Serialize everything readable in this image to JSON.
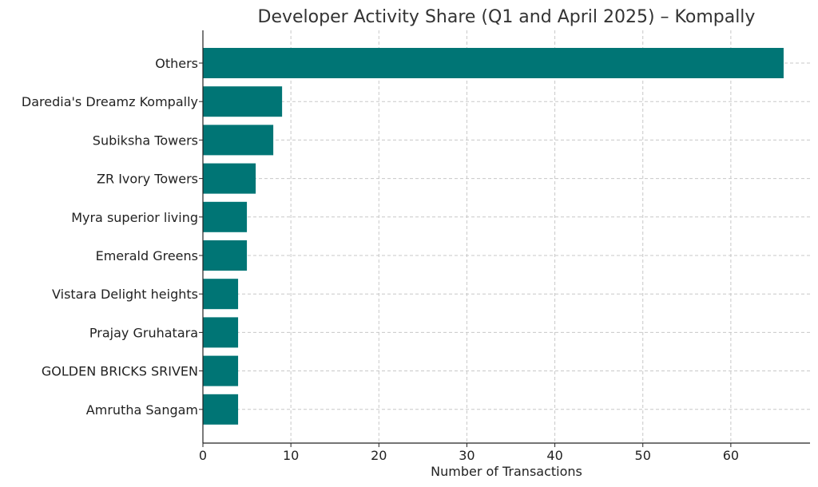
{
  "chart_data": {
    "type": "bar",
    "orientation": "horizontal",
    "title": "Developer Activity Share (Q1 and April 2025) – Kompally",
    "xlabel": "Number of Transactions",
    "ylabel": "",
    "categories": [
      "Others",
      "Daredia's Dreamz Kompally",
      "Subiksha Towers",
      "ZR Ivory Towers",
      "Myra superior living",
      "Emerald Greens",
      "Vistara Delight heights",
      "Prajay Gruhatara",
      "GOLDEN BRICKS SRIVEN",
      "Amrutha Sangam"
    ],
    "values": [
      66,
      9,
      8,
      6,
      5,
      5,
      4,
      4,
      4,
      4
    ],
    "xlim": [
      0,
      69
    ],
    "xticks": [
      0,
      10,
      20,
      30,
      40,
      50,
      60
    ],
    "grid": true,
    "bar_color": "#007575"
  }
}
